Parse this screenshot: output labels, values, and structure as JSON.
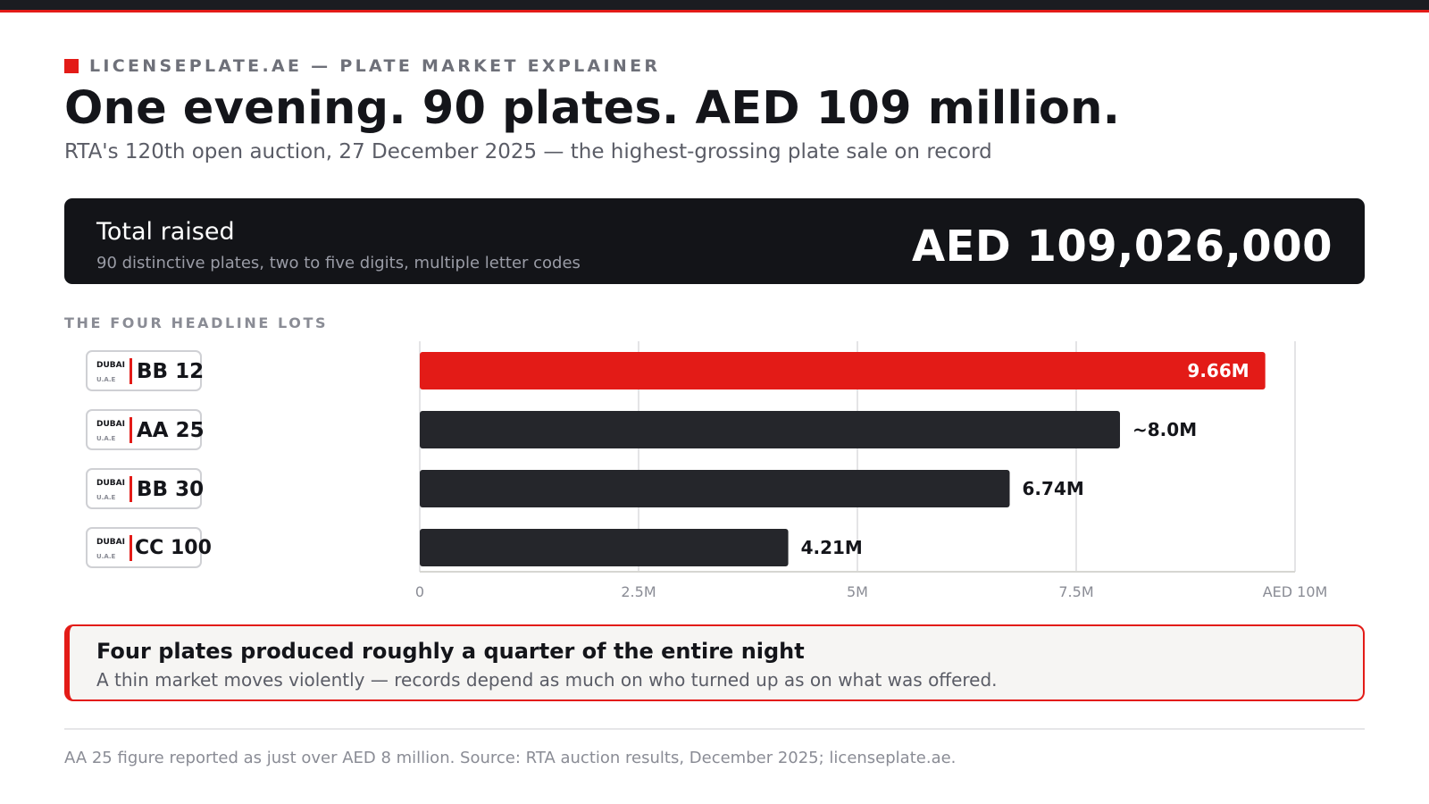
{
  "colors": {
    "accent": "#e31b17",
    "dark": "#131418",
    "bar_dark": "#25262b"
  },
  "header": {
    "kicker": "LICENSEPLATE.AE — PLATE MARKET EXPLAINER",
    "title": "One evening. 90 plates. AED 109 million.",
    "subtitle": "RTA's 120th open auction, 27 December 2025 — the highest-grossing plate sale on record"
  },
  "total": {
    "label": "Total raised",
    "note": "90 distinctive plates, two to five digits, multiple letter codes",
    "value": "AED 109,026,000"
  },
  "section_label": "THE FOUR HEADLINE LOTS",
  "plates": [
    {
      "city": "DUBAI",
      "country": "U.A.E",
      "code": "BB 12"
    },
    {
      "city": "DUBAI",
      "country": "U.A.E",
      "code": "AA 25"
    },
    {
      "city": "DUBAI",
      "country": "U.A.E",
      "code": "BB 30"
    },
    {
      "city": "DUBAI",
      "country": "U.A.E",
      "code": "CC 100"
    }
  ],
  "chart_data": {
    "type": "bar",
    "orientation": "horizontal",
    "categories": [
      "BB 12",
      "AA 25",
      "BB 30",
      "CC 100"
    ],
    "values": [
      9.66,
      8.0,
      6.74,
      4.21
    ],
    "value_labels": [
      "9.66M",
      "~8.0M",
      "6.74M",
      "4.21M"
    ],
    "highlight_index": 0,
    "xlim": [
      0,
      10
    ],
    "xticks": [
      0,
      2.5,
      5,
      7.5,
      10
    ],
    "xtick_labels": [
      "0",
      "2.5M",
      "5M",
      "7.5M",
      "AED 10M"
    ],
    "grid": true
  },
  "callout": {
    "title": "Four plates produced roughly a quarter of the entire night",
    "body": "A thin market moves violently — records depend as much on who turned up as on what was offered."
  },
  "footnote": "AA 25 figure reported as just over AED 8 million. Source: RTA auction results, December 2025; licenseplate.ae."
}
